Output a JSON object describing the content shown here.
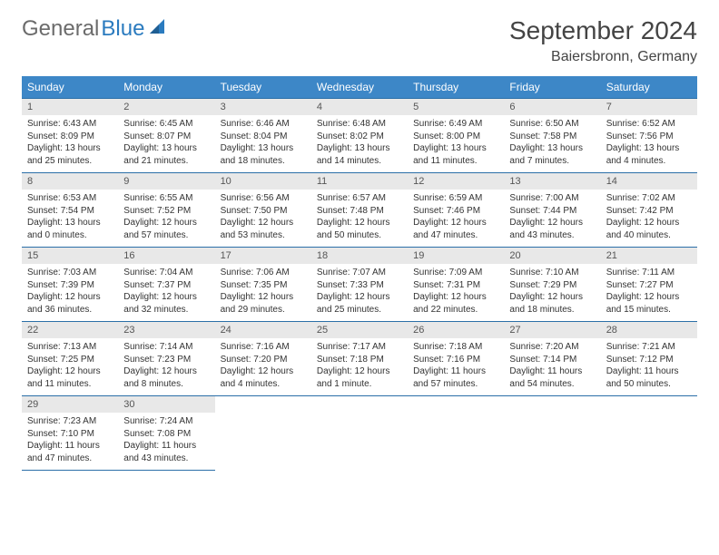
{
  "logo": {
    "general": "General",
    "blue": "Blue"
  },
  "title": "September 2024",
  "location": "Baiersbronn, Germany",
  "header_bg": "#3d87c7",
  "header_text_color": "#ffffff",
  "cell_border_color": "#2b6fa8",
  "daynum_bg": "#e8e8e8",
  "weekdays": [
    "Sunday",
    "Monday",
    "Tuesday",
    "Wednesday",
    "Thursday",
    "Friday",
    "Saturday"
  ],
  "days": [
    {
      "n": "1",
      "sr": "6:43 AM",
      "ss": "8:09 PM",
      "dl": "13 hours and 25 minutes."
    },
    {
      "n": "2",
      "sr": "6:45 AM",
      "ss": "8:07 PM",
      "dl": "13 hours and 21 minutes."
    },
    {
      "n": "3",
      "sr": "6:46 AM",
      "ss": "8:04 PM",
      "dl": "13 hours and 18 minutes."
    },
    {
      "n": "4",
      "sr": "6:48 AM",
      "ss": "8:02 PM",
      "dl": "13 hours and 14 minutes."
    },
    {
      "n": "5",
      "sr": "6:49 AM",
      "ss": "8:00 PM",
      "dl": "13 hours and 11 minutes."
    },
    {
      "n": "6",
      "sr": "6:50 AM",
      "ss": "7:58 PM",
      "dl": "13 hours and 7 minutes."
    },
    {
      "n": "7",
      "sr": "6:52 AM",
      "ss": "7:56 PM",
      "dl": "13 hours and 4 minutes."
    },
    {
      "n": "8",
      "sr": "6:53 AM",
      "ss": "7:54 PM",
      "dl": "13 hours and 0 minutes."
    },
    {
      "n": "9",
      "sr": "6:55 AM",
      "ss": "7:52 PM",
      "dl": "12 hours and 57 minutes."
    },
    {
      "n": "10",
      "sr": "6:56 AM",
      "ss": "7:50 PM",
      "dl": "12 hours and 53 minutes."
    },
    {
      "n": "11",
      "sr": "6:57 AM",
      "ss": "7:48 PM",
      "dl": "12 hours and 50 minutes."
    },
    {
      "n": "12",
      "sr": "6:59 AM",
      "ss": "7:46 PM",
      "dl": "12 hours and 47 minutes."
    },
    {
      "n": "13",
      "sr": "7:00 AM",
      "ss": "7:44 PM",
      "dl": "12 hours and 43 minutes."
    },
    {
      "n": "14",
      "sr": "7:02 AM",
      "ss": "7:42 PM",
      "dl": "12 hours and 40 minutes."
    },
    {
      "n": "15",
      "sr": "7:03 AM",
      "ss": "7:39 PM",
      "dl": "12 hours and 36 minutes."
    },
    {
      "n": "16",
      "sr": "7:04 AM",
      "ss": "7:37 PM",
      "dl": "12 hours and 32 minutes."
    },
    {
      "n": "17",
      "sr": "7:06 AM",
      "ss": "7:35 PM",
      "dl": "12 hours and 29 minutes."
    },
    {
      "n": "18",
      "sr": "7:07 AM",
      "ss": "7:33 PM",
      "dl": "12 hours and 25 minutes."
    },
    {
      "n": "19",
      "sr": "7:09 AM",
      "ss": "7:31 PM",
      "dl": "12 hours and 22 minutes."
    },
    {
      "n": "20",
      "sr": "7:10 AM",
      "ss": "7:29 PM",
      "dl": "12 hours and 18 minutes."
    },
    {
      "n": "21",
      "sr": "7:11 AM",
      "ss": "7:27 PM",
      "dl": "12 hours and 15 minutes."
    },
    {
      "n": "22",
      "sr": "7:13 AM",
      "ss": "7:25 PM",
      "dl": "12 hours and 11 minutes."
    },
    {
      "n": "23",
      "sr": "7:14 AM",
      "ss": "7:23 PM",
      "dl": "12 hours and 8 minutes."
    },
    {
      "n": "24",
      "sr": "7:16 AM",
      "ss": "7:20 PM",
      "dl": "12 hours and 4 minutes."
    },
    {
      "n": "25",
      "sr": "7:17 AM",
      "ss": "7:18 PM",
      "dl": "12 hours and 1 minute."
    },
    {
      "n": "26",
      "sr": "7:18 AM",
      "ss": "7:16 PM",
      "dl": "11 hours and 57 minutes."
    },
    {
      "n": "27",
      "sr": "7:20 AM",
      "ss": "7:14 PM",
      "dl": "11 hours and 54 minutes."
    },
    {
      "n": "28",
      "sr": "7:21 AM",
      "ss": "7:12 PM",
      "dl": "11 hours and 50 minutes."
    },
    {
      "n": "29",
      "sr": "7:23 AM",
      "ss": "7:10 PM",
      "dl": "11 hours and 47 minutes."
    },
    {
      "n": "30",
      "sr": "7:24 AM",
      "ss": "7:08 PM",
      "dl": "11 hours and 43 minutes."
    }
  ],
  "labels": {
    "sunrise": "Sunrise:",
    "sunset": "Sunset:",
    "daylight": "Daylight:"
  }
}
